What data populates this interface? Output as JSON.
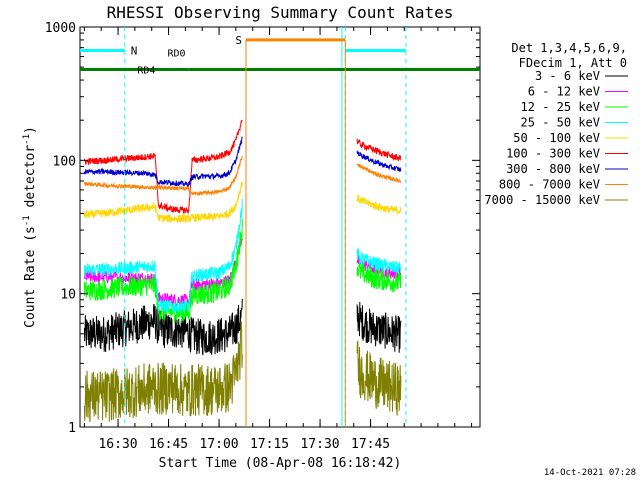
{
  "chart_data": {
    "type": "line",
    "title": "RHESSI Observing Summary Count Rates",
    "xlabel": "Start Time (08-Apr-08 16:18:42)",
    "ylabel_main": "Count Rate (s",
    "ylabel_sup1": "-1",
    "ylabel_mid": " detector",
    "ylabel_sup2": "-1",
    "ylabel_end": ")",
    "ylog": true,
    "xlim_min": [
      18.7,
      137.5
    ],
    "ylim": [
      1,
      1000
    ],
    "x_ticks": [
      {
        "label": "16:30",
        "x": 30
      },
      {
        "label": "16:45",
        "x": 45
      },
      {
        "label": "17:00",
        "x": 60
      },
      {
        "label": "17:15",
        "x": 75
      },
      {
        "label": "17:30",
        "x": 90
      },
      {
        "label": "17:45",
        "x": 105
      }
    ],
    "y_ticks": [
      {
        "label": "1",
        "y": 1
      },
      {
        "label": "10",
        "y": 10
      },
      {
        "label": "100",
        "y": 100
      },
      {
        "label": "1000",
        "y": 1000
      }
    ],
    "legend_header": [
      "Det 1,3,4,5,6,9,",
      "FDecim 1, Att 0"
    ],
    "series": [
      {
        "name": "3 - 6 keV",
        "color": "#000000",
        "segs": [
          [
            [
              20,
              5
            ],
            [
              26,
              5
            ],
            [
              32,
              5.5
            ],
            [
              38,
              6
            ],
            [
              41,
              6.3
            ],
            [
              42,
              5.5
            ],
            [
              44,
              5.3
            ],
            [
              48,
              5.3
            ],
            [
              51,
              5.2
            ],
            [
              52,
              4.8
            ],
            [
              55,
              4.7
            ],
            [
              59,
              4.8
            ],
            [
              63,
              5
            ],
            [
              65,
              5.6
            ],
            [
              67,
              7
            ]
          ],
          [
            [
              101,
              7
            ],
            [
              102,
              6.3
            ],
            [
              105,
              5.6
            ],
            [
              110,
              5.2
            ],
            [
              114,
              4.9
            ]
          ]
        ],
        "noise": 0.14
      },
      {
        "name": "6 - 12 keV",
        "color": "#ff00ff",
        "segs": [
          [
            [
              20,
              13.5
            ],
            [
              26,
              13.4
            ],
            [
              32,
              13.2
            ],
            [
              38,
              13
            ],
            [
              41,
              12.8
            ],
            [
              42,
              9.2
            ],
            [
              46,
              9
            ],
            [
              51,
              8.8
            ],
            [
              52,
              11.5
            ],
            [
              56,
              11.8
            ],
            [
              60,
              11.8
            ],
            [
              63,
              12.5
            ],
            [
              65,
              17
            ],
            [
              67,
              28
            ]
          ],
          [
            [
              101,
              18
            ],
            [
              102,
              17
            ],
            [
              106,
              15.5
            ],
            [
              110,
              14.5
            ],
            [
              114,
              14
            ]
          ]
        ],
        "noise": 0.05
      },
      {
        "name": "12 - 25 keV",
        "color": "#00ff00",
        "segs": [
          [
            [
              20,
              10.5
            ],
            [
              26,
              10.8
            ],
            [
              32,
              11.2
            ],
            [
              38,
              11.5
            ],
            [
              41,
              11.6
            ],
            [
              42,
              7.5
            ],
            [
              46,
              7.3
            ],
            [
              51,
              7.2
            ],
            [
              52,
              9.8
            ],
            [
              56,
              10
            ],
            [
              60,
              10.3
            ],
            [
              63,
              11.5
            ],
            [
              65,
              16
            ],
            [
              67,
              33
            ]
          ],
          [
            [
              101,
              16
            ],
            [
              102,
              14.5
            ],
            [
              106,
              13
            ],
            [
              110,
              12.5
            ],
            [
              114,
              12
            ]
          ]
        ],
        "noise": 0.08
      },
      {
        "name": "25 - 50 keV",
        "color": "#00ffff",
        "segs": [
          [
            [
              20,
              15
            ],
            [
              26,
              15.2
            ],
            [
              32,
              15.5
            ],
            [
              38,
              16
            ],
            [
              41,
              16.3
            ],
            [
              42,
              8.2
            ],
            [
              46,
              8
            ],
            [
              51,
              8
            ],
            [
              52,
              13.5
            ],
            [
              56,
              14
            ],
            [
              60,
              14.3
            ],
            [
              63,
              16
            ],
            [
              65,
              22
            ],
            [
              67,
              48
            ]
          ],
          [
            [
              101,
              20
            ],
            [
              102,
              18.5
            ],
            [
              106,
              17
            ],
            [
              110,
              16
            ],
            [
              114,
              15.5
            ]
          ]
        ],
        "noise": 0.05
      },
      {
        "name": "50 - 100 keV",
        "color": "#ffd700",
        "segs": [
          [
            [
              20,
              39
            ],
            [
              26,
              40
            ],
            [
              32,
              42
            ],
            [
              38,
              44
            ],
            [
              41,
              45
            ],
            [
              42,
              37
            ],
            [
              46,
              36.5
            ],
            [
              51,
              36.5
            ],
            [
              52,
              37
            ],
            [
              56,
              37.5
            ],
            [
              60,
              38
            ],
            [
              63,
              40
            ],
            [
              65,
              46
            ],
            [
              67,
              70
            ]
          ],
          [
            [
              101,
              52
            ],
            [
              102,
              50
            ],
            [
              106,
              46
            ],
            [
              110,
              43
            ],
            [
              114,
              42
            ]
          ]
        ],
        "noise": 0.03
      },
      {
        "name": "100 - 300 keV",
        "color": "#ff0000",
        "segs": [
          [
            [
              20,
              98
            ],
            [
              26,
              100
            ],
            [
              32,
              103
            ],
            [
              38,
              106
            ],
            [
              41,
              108
            ],
            [
              42,
              46
            ],
            [
              46,
              43
            ],
            [
              51,
              42
            ],
            [
              52,
              100
            ],
            [
              56,
              103
            ],
            [
              60,
              106
            ],
            [
              63,
              115
            ],
            [
              65,
              140
            ],
            [
              67,
              210
            ]
          ],
          [
            [
              101,
              140
            ],
            [
              102,
              132
            ],
            [
              106,
              120
            ],
            [
              110,
              110
            ],
            [
              114,
              103
            ]
          ]
        ],
        "noise": 0.025
      },
      {
        "name": "300 - 800 keV",
        "color": "#0000cc",
        "segs": [
          [
            [
              20,
              82
            ],
            [
              26,
              82
            ],
            [
              32,
              81
            ],
            [
              38,
              80
            ],
            [
              41,
              78
            ],
            [
              42,
              69
            ],
            [
              46,
              68
            ],
            [
              51,
              66
            ],
            [
              52,
              75
            ],
            [
              56,
              76
            ],
            [
              60,
              76
            ],
            [
              63,
              80
            ],
            [
              65,
              100
            ],
            [
              67,
              150
            ]
          ],
          [
            [
              101,
              115
            ],
            [
              102,
              110
            ],
            [
              106,
              98
            ],
            [
              110,
              90
            ],
            [
              114,
              85
            ]
          ]
        ],
        "noise": 0.02
      },
      {
        "name": "800 - 7000 keV",
        "color": "#ff8000",
        "segs": [
          [
            [
              20,
              67
            ],
            [
              26,
              65
            ],
            [
              32,
              64
            ],
            [
              38,
              63
            ],
            [
              41,
              62
            ],
            [
              42,
              63
            ],
            [
              46,
              62
            ],
            [
              51,
              61
            ],
            [
              52,
              56
            ],
            [
              56,
              57
            ],
            [
              60,
              58
            ],
            [
              63,
              62
            ],
            [
              65,
              75
            ],
            [
              67,
              110
            ]
          ],
          [
            [
              101,
              95
            ],
            [
              102,
              90
            ],
            [
              106,
              80
            ],
            [
              110,
              74
            ],
            [
              114,
              70
            ]
          ]
        ],
        "noise": 0.015
      },
      {
        "name": "7000 - 15000 keV",
        "color": "#808000",
        "segs": [
          [
            [
              20,
              1.7
            ],
            [
              26,
              1.7
            ],
            [
              32,
              1.8
            ],
            [
              38,
              1.9
            ],
            [
              41,
              2
            ],
            [
              42,
              1.9
            ],
            [
              46,
              2
            ],
            [
              51,
              1.8
            ],
            [
              52,
              1.9
            ],
            [
              56,
              1.9
            ],
            [
              60,
              1.9
            ],
            [
              63,
              2
            ],
            [
              65,
              2.5
            ],
            [
              67,
              4.5
            ]
          ],
          [
            [
              101,
              3
            ],
            [
              102,
              2.6
            ],
            [
              106,
              2.2
            ],
            [
              110,
              2
            ],
            [
              114,
              1.9
            ]
          ]
        ],
        "noise": 0.2
      }
    ],
    "annotations": [
      {
        "label": "N",
        "color": "#00ffff",
        "style": "saa_night",
        "y": 667
      },
      {
        "label": "RD0",
        "color": "#008000",
        "style": "decim",
        "y": 580
      },
      {
        "label": "RD4",
        "color": "#008000",
        "style": "decim",
        "y": 480
      },
      {
        "label": "S",
        "color": "#ff8000",
        "style": "saa_bar",
        "y": 800
      }
    ],
    "n_segments": [
      [
        18.7,
        32
      ],
      [
        97.5,
        115.5
      ]
    ],
    "n_dashes": [
      32,
      97.5,
      115.5
    ],
    "decim_rd0": [
      [
        18.7,
        42.3
      ],
      [
        51,
        137.5
      ]
    ],
    "decim_rd4": [
      42.3,
      51
    ],
    "saa_bar": [
      68,
      97.5
    ],
    "saa_lines": [
      68,
      97.5
    ],
    "cyan_vline_x": 96.5
  },
  "footer": {
    "datestamp": "14-Oct-2021 07:28"
  }
}
